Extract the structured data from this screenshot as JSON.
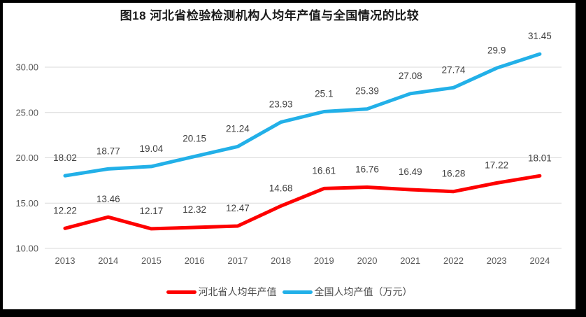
{
  "chart_data": {
    "type": "line",
    "title": "图18 河北省检验检测机构人均年产值与全国情况的比较",
    "categories": [
      "2013",
      "2014",
      "2015",
      "2016",
      "2017",
      "2018",
      "2019",
      "2020",
      "2021",
      "2022",
      "2023",
      "2024"
    ],
    "series": [
      {
        "name": "河北省人均年产值",
        "color": "#fe0000",
        "values": [
          12.22,
          13.46,
          12.17,
          12.32,
          12.47,
          14.68,
          16.61,
          16.76,
          16.49,
          16.28,
          17.22,
          18.01
        ],
        "labels": [
          "12.22",
          "13.46",
          "12.17",
          "12.32",
          "12.47",
          "14.68",
          "16.61",
          "16.76",
          "16.49",
          "16.28",
          "17.22",
          "18.01"
        ]
      },
      {
        "name": "全国人均产值（万元）",
        "color": "#22b0e8",
        "values": [
          18.02,
          18.77,
          19.04,
          20.15,
          21.24,
          23.93,
          25.1,
          25.39,
          27.08,
          27.74,
          29.9,
          31.45
        ],
        "labels": [
          "18.02",
          "18.77",
          "19.04",
          "20.15",
          "21.24",
          "23.93",
          "25.1",
          "25.39",
          "27.08",
          "27.74",
          "29.9",
          "31.45"
        ]
      }
    ],
    "y_ticks": [
      "30.00",
      "25.00",
      "20.00",
      "15.00",
      "10.00"
    ],
    "ylim": [
      10,
      30
    ],
    "grid": true,
    "legend_position": "bottom",
    "colors": {
      "gridline": "#d9d9d9",
      "axis_text": "#595959",
      "data_label_text": "#404040",
      "frame_border": "#000000",
      "background": "#ffffff"
    }
  }
}
